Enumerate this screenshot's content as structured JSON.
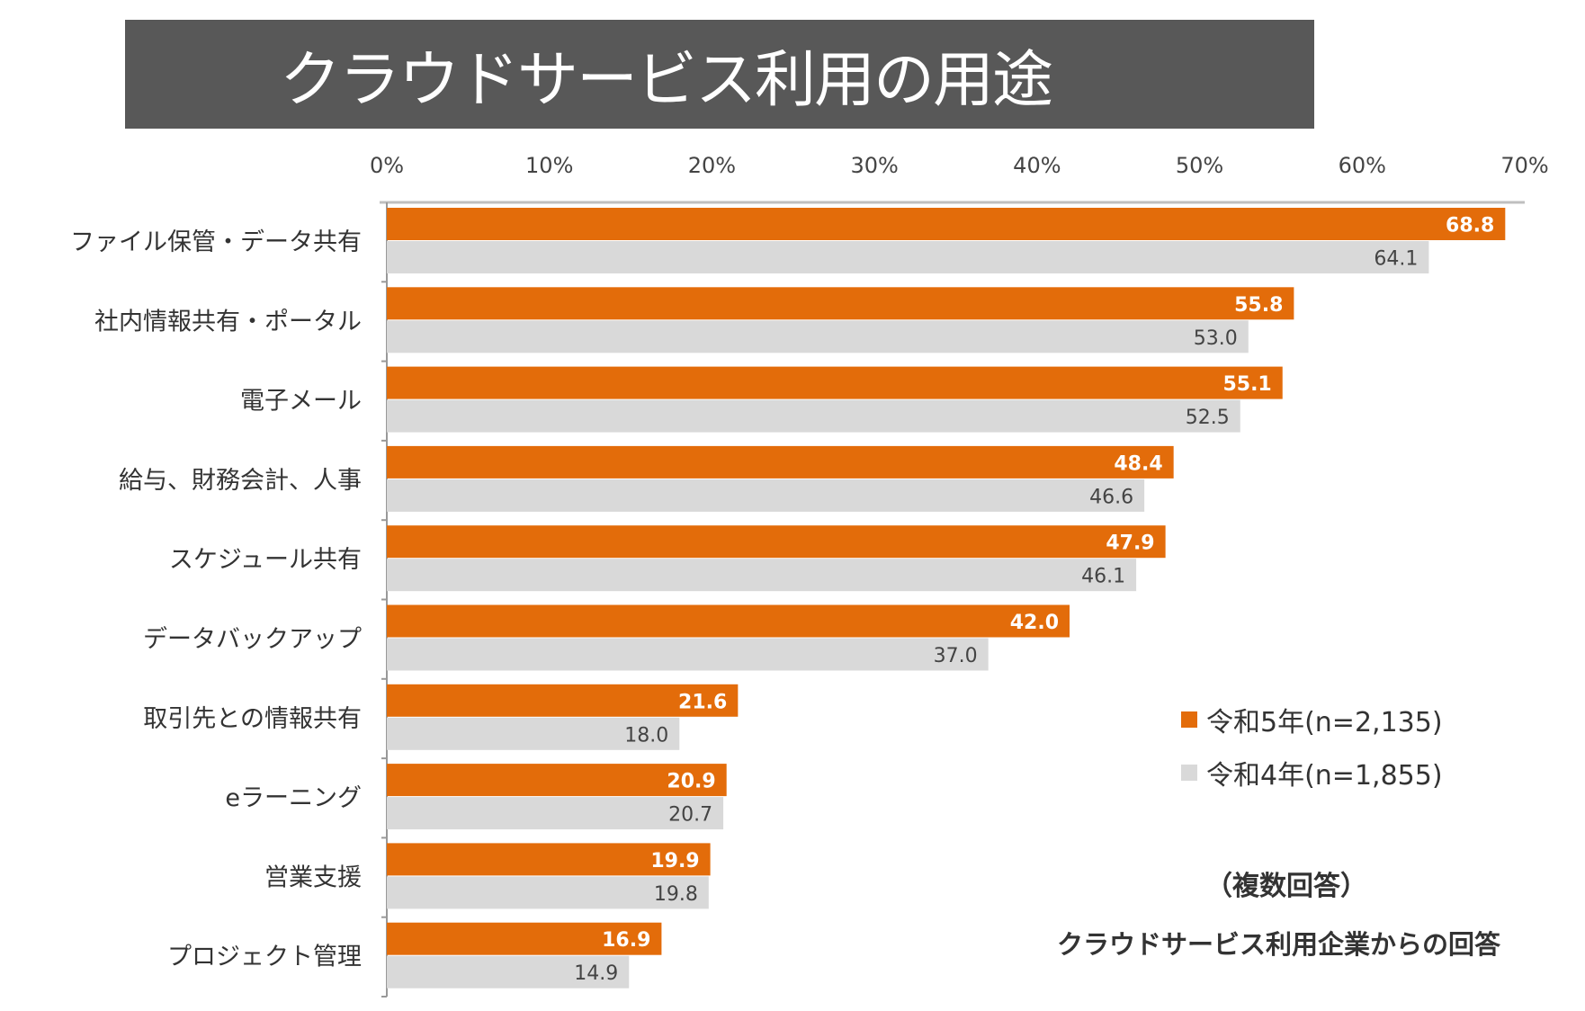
{
  "chart_data": {
    "type": "bar",
    "orientation": "horizontal",
    "title": "クラウドサービス利用の用途",
    "categories": [
      "ファイル保管・データ共有",
      "社内情報共有・ポータル",
      "電子メール",
      "給与、財務会計、人事",
      "スケジュール共有",
      "データバックアップ",
      "取引先との情報共有",
      "eラーニング",
      "営業支援",
      "プロジェクト管理"
    ],
    "series": [
      {
        "name": "令和5年(n=2,135)",
        "color": "#E36C0A",
        "values": [
          68.8,
          55.8,
          55.1,
          48.4,
          47.9,
          42.0,
          21.6,
          20.9,
          19.9,
          16.9
        ]
      },
      {
        "name": "令和4年(n=1,855)",
        "color": "#D9D9D9",
        "values": [
          64.1,
          53.0,
          52.5,
          46.6,
          46.1,
          37.0,
          18.0,
          20.7,
          19.8,
          14.9
        ]
      }
    ],
    "xticks": [
      "0%",
      "10%",
      "20%",
      "30%",
      "40%",
      "50%",
      "60%",
      "70%"
    ],
    "xlim": [
      0,
      70
    ],
    "axis_position": "top",
    "grid": false,
    "legend_position": "right"
  },
  "notes": {
    "multi": "（複数回答）",
    "respondents": "クラウドサービス利用企業からの回答"
  }
}
